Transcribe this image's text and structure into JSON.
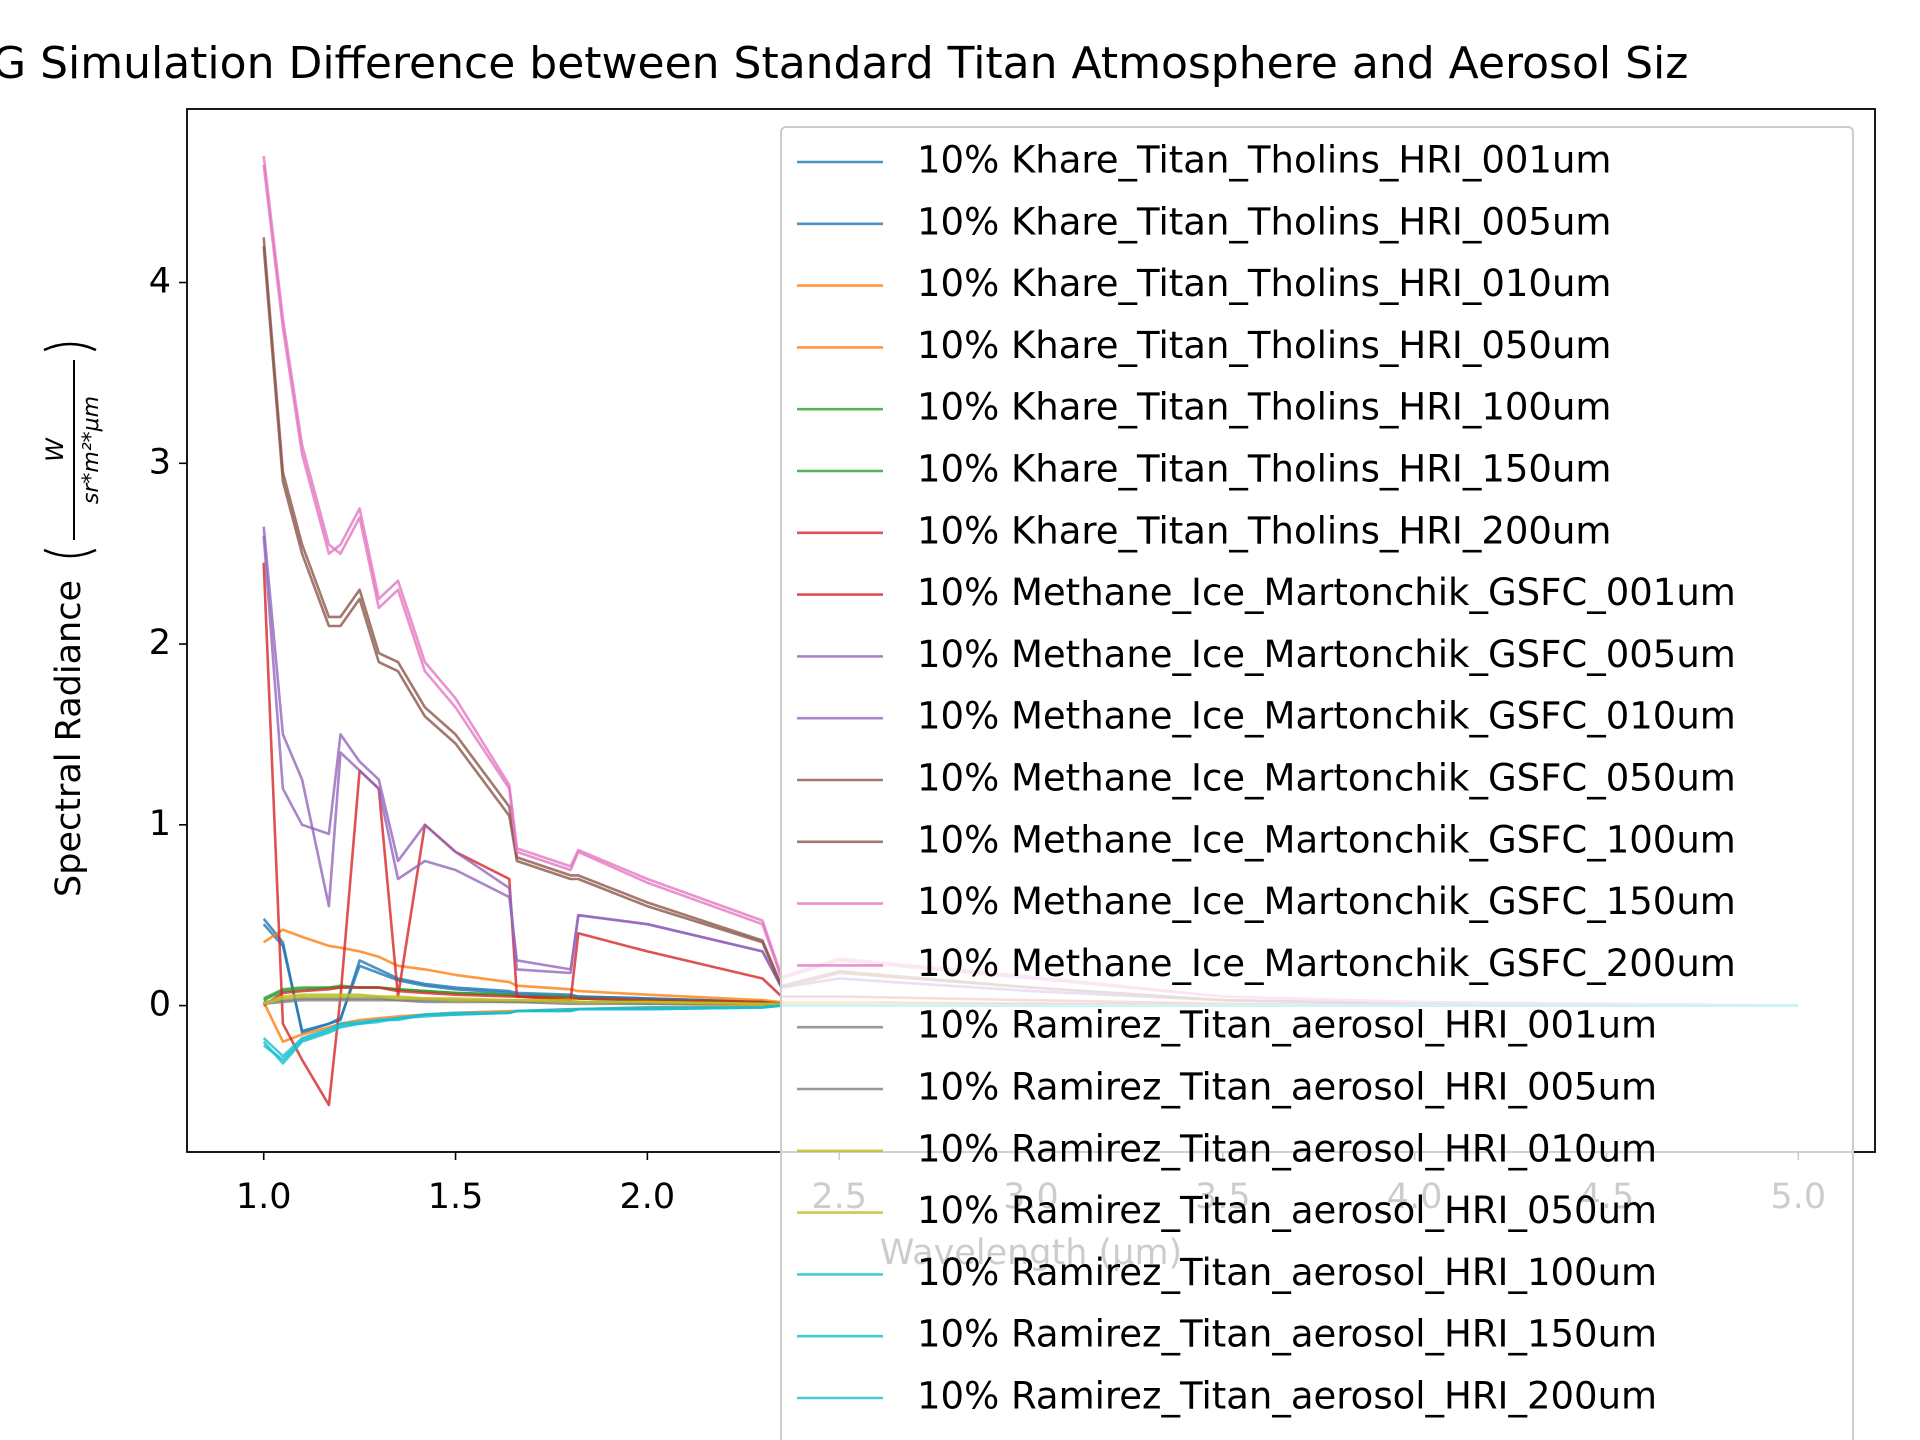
{
  "chart_data": {
    "type": "line",
    "title": "G Simulation Difference between Standard Titan Atmosphere and Aerosol Siz",
    "xlabel": "Wavelength (μm)",
    "ylabel": "Spectral Radiance",
    "y_unit": {
      "numerator": "W",
      "denominator": "sr*m²*μm"
    },
    "x": [
      1.0,
      1.05,
      1.1,
      1.17,
      1.2,
      1.25,
      1.3,
      1.35,
      1.42,
      1.5,
      1.64,
      1.66,
      1.8,
      1.82,
      2.0,
      2.3,
      2.35,
      2.5,
      3.0,
      3.5,
      4.0,
      5.0
    ],
    "xlim": [
      0.8,
      5.2
    ],
    "ylim": [
      -0.81,
      4.96
    ],
    "xticks": [
      {
        "value": 1.0,
        "label": "1.0"
      },
      {
        "value": 1.5,
        "label": "1.5"
      },
      {
        "value": 2.0,
        "label": "2.0"
      },
      {
        "value": 2.5,
        "label": "2.5"
      },
      {
        "value": 3.0,
        "label": "3.0"
      },
      {
        "value": 3.5,
        "label": "3.5"
      },
      {
        "value": 4.0,
        "label": "4.0"
      },
      {
        "value": 4.5,
        "label": "4.5"
      },
      {
        "value": 5.0,
        "label": "5.0"
      }
    ],
    "yticks": [
      0,
      1,
      2,
      3,
      4
    ],
    "legend": "upper right",
    "series": [
      {
        "name": "10% Khare_Titan_Tholins_HRI_001um",
        "color": "#1f77b4",
        "values": [
          0.48,
          0.35,
          -0.15,
          -0.1,
          -0.08,
          0.25,
          0.2,
          0.15,
          0.12,
          0.1,
          0.08,
          0.07,
          0.06,
          0.05,
          0.04,
          0.02,
          0.01,
          0.01,
          0,
          0,
          0,
          0
        ]
      },
      {
        "name": "10% Khare_Titan_Tholins_HRI_005um",
        "color": "#1f77b4",
        "values": [
          0.45,
          0.33,
          -0.14,
          -0.1,
          -0.07,
          0.22,
          0.18,
          0.14,
          0.11,
          0.09,
          0.07,
          0.06,
          0.05,
          0.05,
          0.04,
          0.02,
          0.01,
          0.01,
          0,
          0,
          0,
          0
        ]
      },
      {
        "name": "10% Khare_Titan_Tholins_HRI_010um",
        "color": "#ff7f0e",
        "values": [
          0.35,
          0.42,
          0.38,
          0.33,
          0.32,
          0.3,
          0.27,
          0.22,
          0.2,
          0.17,
          0.13,
          0.11,
          0.09,
          0.08,
          0.06,
          0.03,
          0.02,
          0.02,
          0.01,
          0,
          0,
          0
        ]
      },
      {
        "name": "10% Khare_Titan_Tholins_HRI_050um",
        "color": "#ff7f0e",
        "values": [
          0.02,
          -0.2,
          -0.16,
          -0.12,
          -0.1,
          -0.08,
          -0.07,
          -0.06,
          -0.05,
          -0.04,
          -0.03,
          -0.03,
          -0.02,
          -0.02,
          -0.01,
          0,
          0,
          0,
          0,
          0,
          0,
          0
        ]
      },
      {
        "name": "10% Khare_Titan_Tholins_HRI_100um",
        "color": "#2ca02c",
        "values": [
          0.03,
          0.08,
          0.09,
          0.1,
          0.1,
          0.1,
          0.1,
          0.09,
          0.08,
          0.07,
          0.06,
          0.05,
          0.05,
          0.04,
          0.03,
          0.02,
          0.01,
          0.01,
          0.01,
          0,
          0,
          0
        ]
      },
      {
        "name": "10% Khare_Titan_Tholins_HRI_150um",
        "color": "#2ca02c",
        "values": [
          0.04,
          0.09,
          0.1,
          0.1,
          0.11,
          0.1,
          0.1,
          0.09,
          0.08,
          0.07,
          0.06,
          0.05,
          0.05,
          0.04,
          0.03,
          0.02,
          0.01,
          0.01,
          0.01,
          0,
          0,
          0
        ]
      },
      {
        "name": "10% Khare_Titan_Tholins_HRI_200um",
        "color": "#d62728",
        "values": [
          0,
          0.07,
          0.08,
          0.09,
          0.1,
          0.1,
          0.1,
          0.08,
          0.07,
          0.06,
          0.05,
          0.05,
          0.04,
          0.04,
          0.03,
          0.02,
          0.01,
          0.01,
          0.01,
          0,
          0,
          0
        ]
      },
      {
        "name": "10% Methane_Ice_Martonchik_GSFC_001um",
        "color": "#d62728",
        "values": [
          2.45,
          -0.1,
          -0.3,
          -0.55,
          0.05,
          1.3,
          1.2,
          0.05,
          1.0,
          0.85,
          0.7,
          0.05,
          0.03,
          0.4,
          0.3,
          0.15,
          0.05,
          0.05,
          0.03,
          0.01,
          0,
          0
        ]
      },
      {
        "name": "10% Methane_Ice_Martonchik_GSFC_005um",
        "color": "#9467bd",
        "values": [
          2.65,
          1.5,
          1.25,
          0.55,
          1.4,
          1.3,
          1.2,
          0.7,
          0.8,
          0.75,
          0.6,
          0.25,
          0.2,
          0.5,
          0.45,
          0.3,
          0.1,
          0.15,
          0.08,
          0.03,
          0.01,
          0
        ]
      },
      {
        "name": "10% Methane_Ice_Martonchik_GSFC_010um",
        "color": "#9467bd",
        "values": [
          2.6,
          1.2,
          1.0,
          0.95,
          1.5,
          1.35,
          1.25,
          0.8,
          1.0,
          0.85,
          0.65,
          0.2,
          0.18,
          0.5,
          0.45,
          0.3,
          0.1,
          0.15,
          0.08,
          0.03,
          0.01,
          0
        ]
      },
      {
        "name": "10% Methane_Ice_Martonchik_GSFC_050um",
        "color": "#8c564b",
        "values": [
          4.2,
          2.9,
          2.5,
          2.1,
          2.1,
          2.25,
          1.9,
          1.85,
          1.6,
          1.45,
          1.05,
          0.8,
          0.7,
          0.7,
          0.55,
          0.35,
          0.1,
          0.18,
          0.1,
          0.03,
          0.01,
          0
        ]
      },
      {
        "name": "10% Methane_Ice_Martonchik_GSFC_100um",
        "color": "#8c564b",
        "values": [
          4.25,
          2.95,
          2.55,
          2.15,
          2.15,
          2.3,
          1.95,
          1.9,
          1.65,
          1.5,
          1.1,
          0.82,
          0.72,
          0.72,
          0.57,
          0.36,
          0.11,
          0.19,
          0.1,
          0.03,
          0.01,
          0
        ]
      },
      {
        "name": "10% Methane_Ice_Martonchik_GSFC_150um",
        "color": "#e377c2",
        "values": [
          4.7,
          3.8,
          3.1,
          2.55,
          2.5,
          2.7,
          2.2,
          2.3,
          1.85,
          1.65,
          1.2,
          0.85,
          0.75,
          0.85,
          0.68,
          0.45,
          0.15,
          0.25,
          0.15,
          0.05,
          0.02,
          0
        ]
      },
      {
        "name": "10% Methane_Ice_Martonchik_GSFC_200um",
        "color": "#e377c2",
        "values": [
          4.65,
          3.75,
          3.05,
          2.5,
          2.55,
          2.75,
          2.25,
          2.35,
          1.9,
          1.7,
          1.22,
          0.87,
          0.77,
          0.86,
          0.7,
          0.47,
          0.16,
          0.26,
          0.16,
          0.05,
          0.02,
          0
        ]
      },
      {
        "name": "10% Ramirez_Titan_aerosol_HRI_001um",
        "color": "#7f7f7f",
        "values": [
          0.02,
          0.03,
          0.04,
          0.04,
          0.04,
          0.04,
          0.04,
          0.03,
          0.03,
          0.03,
          0.02,
          0.02,
          0.02,
          0.02,
          0.01,
          0.01,
          0,
          0,
          0,
          0,
          0,
          0
        ]
      },
      {
        "name": "10% Ramirez_Titan_aerosol_HRI_005um",
        "color": "#7f7f7f",
        "values": [
          0.01,
          0.02,
          0.03,
          0.03,
          0.03,
          0.03,
          0.03,
          0.03,
          0.02,
          0.02,
          0.02,
          0.02,
          0.01,
          0.01,
          0.01,
          0.01,
          0,
          0,
          0,
          0,
          0,
          0
        ]
      },
      {
        "name": "10% Ramirez_Titan_aerosol_HRI_010um",
        "color": "#bcbd22",
        "values": [
          0.01,
          0.05,
          0.06,
          0.06,
          0.06,
          0.06,
          0.05,
          0.05,
          0.04,
          0.04,
          0.03,
          0.03,
          0.03,
          0.02,
          0.02,
          0.01,
          0.01,
          0.01,
          0,
          0,
          0,
          0
        ]
      },
      {
        "name": "10% Ramirez_Titan_aerosol_HRI_050um",
        "color": "#bcbd22",
        "values": [
          0.01,
          0.04,
          0.05,
          0.05,
          0.05,
          0.05,
          0.05,
          0.04,
          0.04,
          0.03,
          0.03,
          0.03,
          0.02,
          0.02,
          0.02,
          0.01,
          0.01,
          0.01,
          0,
          0,
          0,
          0
        ]
      },
      {
        "name": "10% Ramirez_Titan_aerosol_HRI_100um",
        "color": "#17becf",
        "values": [
          -0.2,
          -0.32,
          -0.2,
          -0.15,
          -0.12,
          -0.1,
          -0.08,
          -0.08,
          -0.05,
          -0.05,
          -0.04,
          -0.03,
          -0.03,
          -0.02,
          -0.02,
          -0.01,
          0,
          0,
          0,
          0,
          0,
          0
        ]
      },
      {
        "name": "10% Ramirez_Titan_aerosol_HRI_150um",
        "color": "#17becf",
        "values": [
          -0.22,
          -0.3,
          -0.19,
          -0.14,
          -0.11,
          -0.1,
          -0.09,
          -0.07,
          -0.06,
          -0.05,
          -0.04,
          -0.03,
          -0.03,
          -0.02,
          -0.02,
          -0.01,
          0,
          0,
          0,
          0,
          0,
          0
        ]
      },
      {
        "name": "10% Ramirez_Titan_aerosol_HRI_200um",
        "color": "#17becf",
        "values": [
          -0.18,
          -0.28,
          -0.18,
          -0.13,
          -0.1,
          -0.09,
          -0.08,
          -0.07,
          -0.05,
          -0.04,
          -0.04,
          -0.03,
          -0.02,
          -0.02,
          -0.01,
          -0.01,
          0,
          0,
          0,
          0,
          0,
          0
        ]
      }
    ]
  }
}
